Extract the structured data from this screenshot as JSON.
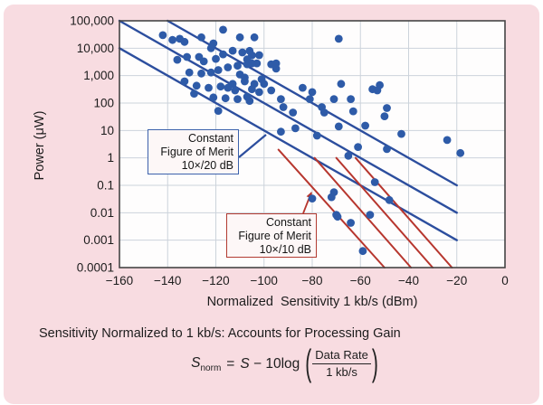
{
  "colors": {
    "card_bg": "#f8dce1",
    "plot_bg": "#fefdfd",
    "grid": "#ccd3db",
    "border": "#454545",
    "dot": "#2e5ba8",
    "blue_line": "#2c4e9e",
    "red_line": "#b7362e",
    "blue_box_border": "#3c62ac",
    "red_box_border": "#b23b32",
    "text": "#1c1c1c"
  },
  "chart_data": {
    "type": "scatter",
    "xlabel": "Normalized  Sensitivity 1 kb/s (dBm)",
    "ylabel": "Power (μW)",
    "xlim": [
      -160,
      0
    ],
    "ylim": [
      0.0001,
      100000
    ],
    "y_log_scale": true,
    "grid": true,
    "x_ticks": [
      {
        "v": -160,
        "label": "−160"
      },
      {
        "v": -140,
        "label": "−140"
      },
      {
        "v": -120,
        "label": "−120"
      },
      {
        "v": -100,
        "label": "−100"
      },
      {
        "v": -80,
        "label": "−80"
      },
      {
        "v": -60,
        "label": "−60"
      },
      {
        "v": -40,
        "label": "−40"
      },
      {
        "v": -20,
        "label": "−20"
      },
      {
        "v": 0,
        "label": "0"
      }
    ],
    "y_ticks": [
      {
        "v": 100000,
        "label": "100,000"
      },
      {
        "v": 10000,
        "label": "10,000"
      },
      {
        "v": 1000,
        "label": "1,000"
      },
      {
        "v": 100,
        "label": "100"
      },
      {
        "v": 10,
        "label": "10"
      },
      {
        "v": 1,
        "label": "1"
      },
      {
        "v": 0.1,
        "label": "0.1"
      },
      {
        "v": 0.01,
        "label": "0.01"
      },
      {
        "v": 0.001,
        "label": "0.001"
      },
      {
        "v": 0.0001,
        "label": "0.0001"
      }
    ],
    "points": [
      [
        -142,
        30000
      ],
      [
        -138,
        20000
      ],
      [
        -133,
        17000
      ],
      [
        -135,
        22000
      ],
      [
        -136,
        3800
      ],
      [
        -132,
        4800
      ],
      [
        -131,
        1300
      ],
      [
        -133,
        620
      ],
      [
        -129,
        220
      ],
      [
        -128,
        430
      ],
      [
        -127,
        4800
      ],
      [
        -126,
        25000
      ],
      [
        -126,
        1200
      ],
      [
        -125,
        3300
      ],
      [
        -123,
        360
      ],
      [
        -122,
        10000
      ],
      [
        -122,
        1300
      ],
      [
        -121,
        15000
      ],
      [
        -121,
        160
      ],
      [
        -120,
        4100
      ],
      [
        -119,
        1600
      ],
      [
        -119,
        52
      ],
      [
        -118,
        400
      ],
      [
        -117,
        47000
      ],
      [
        -117,
        6000
      ],
      [
        -116,
        150
      ],
      [
        -115,
        2000
      ],
      [
        -115,
        360
      ],
      [
        -113,
        8100
      ],
      [
        -113,
        500
      ],
      [
        -112,
        290
      ],
      [
        -111,
        2300
      ],
      [
        -111,
        140
      ],
      [
        -110,
        25000
      ],
      [
        -110,
        1100
      ],
      [
        -109,
        7000
      ],
      [
        -108,
        850
      ],
      [
        -108,
        620
      ],
      [
        -107,
        2600
      ],
      [
        -107,
        170
      ],
      [
        -106,
        120
      ],
      [
        -105,
        5500
      ],
      [
        -104,
        500
      ],
      [
        -103,
        2800
      ],
      [
        -104,
        25000
      ],
      [
        -106,
        8000
      ],
      [
        -102,
        5600
      ],
      [
        -107,
        3900
      ],
      [
        -105,
        2800
      ],
      [
        -97,
        2600
      ],
      [
        -95,
        2800
      ],
      [
        -95,
        1800
      ],
      [
        -101,
        740
      ],
      [
        -100,
        500
      ],
      [
        -105,
        320
      ],
      [
        -102,
        250
      ],
      [
        -97,
        290
      ],
      [
        -93,
        140
      ],
      [
        -92,
        71
      ],
      [
        -88,
        45
      ],
      [
        -84,
        360
      ],
      [
        -80,
        250
      ],
      [
        -81,
        140
      ],
      [
        -76,
        71
      ],
      [
        -75,
        45
      ],
      [
        -71,
        140
      ],
      [
        -68,
        500
      ],
      [
        -69,
        22000
      ],
      [
        -64,
        140
      ],
      [
        -63,
        50
      ],
      [
        -55,
        320
      ],
      [
        -58,
        15
      ],
      [
        -69,
        14
      ],
      [
        -87,
        12
      ],
      [
        -93,
        9
      ],
      [
        -78,
        6.5
      ],
      [
        -52,
        450
      ],
      [
        -53,
        290
      ],
      [
        -49,
        66
      ],
      [
        -50,
        33
      ],
      [
        -43,
        7.5
      ],
      [
        -24,
        4.5
      ],
      [
        -61,
        2.5
      ],
      [
        -65,
        1.2
      ],
      [
        -49,
        2.1
      ],
      [
        -18.5,
        1.5
      ],
      [
        -54,
        0.13
      ],
      [
        -48,
        0.029
      ],
      [
        -80,
        0.033
      ],
      [
        -72,
        0.037
      ],
      [
        -71,
        0.056
      ],
      [
        -70,
        0.0084
      ],
      [
        -56,
        0.0084
      ],
      [
        -69.5,
        0.0072
      ],
      [
        -64,
        0.0043
      ],
      [
        -59,
        0.0004
      ]
    ],
    "blue_lines": [
      {
        "x1": -140,
        "p1": 100000,
        "x2": -20,
        "p2": 0.1
      },
      {
        "x1": -160,
        "p1": 100000,
        "x2": -20,
        "p2": 0.01
      },
      {
        "x1": -160,
        "p1": 10000,
        "x2": -20,
        "p2": 0.001
      }
    ],
    "red_lines": [
      {
        "x1": -94,
        "p1": 2,
        "x2": -50,
        "p2": 0.0001
      },
      {
        "x1": -79,
        "p1": 1,
        "x2": -39,
        "p2": 0.0001
      },
      {
        "x1": -70,
        "p1": 1,
        "x2": -30,
        "p2": 0.0001
      },
      {
        "x1": -62,
        "p1": 1,
        "x2": -22,
        "p2": 0.0001
      }
    ],
    "annotations": {
      "blue_box": {
        "lines": [
          "Constant",
          "Figure of Merit",
          "10×/20 dB"
        ]
      },
      "red_box": {
        "lines": [
          "Constant",
          "Figure of Merit",
          "10×/10 dB"
        ]
      }
    }
  },
  "caption": "Sensitivity Normalized to 1 kb/s: Accounts for Processing Gain",
  "formula": {
    "lhs": "S",
    "lhs_sub": "norm",
    "eq": "=",
    "rhs_var": "S",
    "operator": " − 10log",
    "open_paren": "(",
    "close_paren": ")",
    "numerator": "Data Rate",
    "denominator": "1 kb/s"
  }
}
